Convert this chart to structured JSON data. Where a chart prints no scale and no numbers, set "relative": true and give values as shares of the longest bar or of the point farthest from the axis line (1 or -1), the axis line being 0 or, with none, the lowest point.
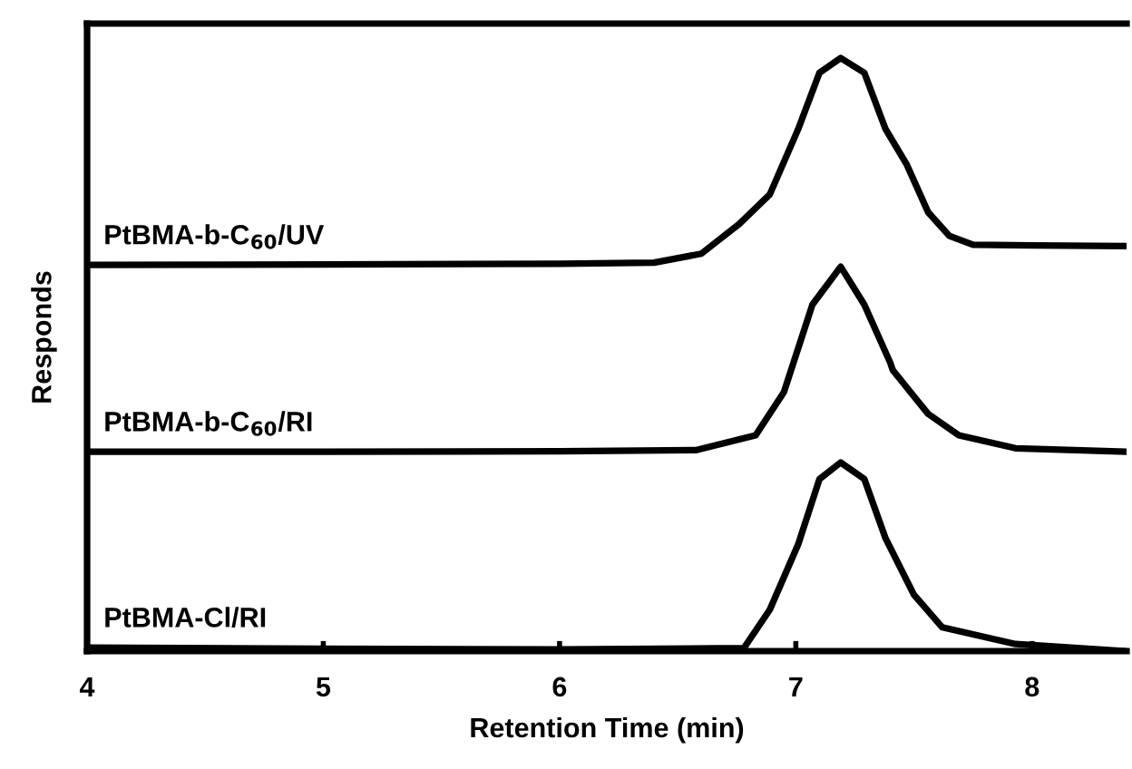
{
  "chart_data": {
    "type": "line",
    "relative": true,
    "xlabel": "Retention Time (min)",
    "ylabel": "Responds",
    "xlim": [
      4,
      8.4
    ],
    "xticks": [
      4,
      5,
      6,
      7,
      8
    ],
    "tick_labels": "x",
    "grid": false,
    "legend": false,
    "marker": "none",
    "line_style": "solid",
    "series": [
      {
        "name": "PtBMA-b-C$_{60}$/UV",
        "color": "#000000",
        "x": [
          4,
          5,
          6,
          6.4,
          6.6,
          6.76,
          6.89,
          7.01,
          7.1,
          7.19,
          7.29,
          7.38,
          7.47,
          7.56,
          7.65,
          7.75,
          8,
          8.4
        ],
        "values": [
          0.651,
          0.652,
          0.653,
          0.655,
          0.67,
          0.72,
          0.77,
          0.88,
          0.975,
          1.0,
          0.975,
          0.88,
          0.82,
          0.74,
          0.7,
          0.685,
          0.684,
          0.683
        ]
      },
      {
        "name": "PtBMA-b-C$_{60}$/RI",
        "color": "#000000",
        "x": [
          4,
          5,
          6,
          6.58,
          6.83,
          6.95,
          6.99,
          7.07,
          7.19,
          7.29,
          7.4,
          7.41,
          7.56,
          7.69,
          7.93,
          8.4
        ],
        "values": [
          0.336,
          0.336,
          0.337,
          0.339,
          0.364,
          0.437,
          0.486,
          0.584,
          0.648,
          0.584,
          0.486,
          0.474,
          0.4,
          0.364,
          0.342,
          0.336
        ]
      },
      {
        "name": "PtBMA-Cl/RI",
        "color": "#000000",
        "x": [
          4,
          5,
          6,
          6.78,
          6.89,
          7.01,
          7.1,
          7.19,
          7.29,
          7.38,
          7.5,
          7.62,
          7.93,
          8.4
        ],
        "values": [
          0.006,
          0.004,
          0.003,
          0.005,
          0.07,
          0.18,
          0.29,
          0.318,
          0.29,
          0.19,
          0.095,
          0.04,
          0.012,
          0.0
        ]
      }
    ]
  }
}
